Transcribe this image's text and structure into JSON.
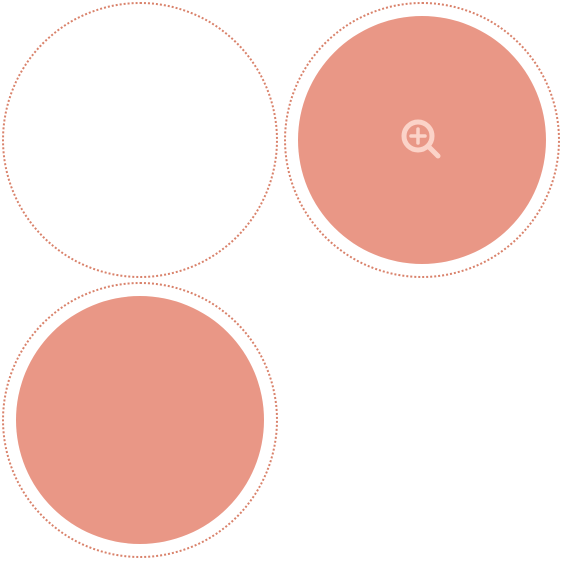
{
  "colors": {
    "ring": "#d9826b",
    "fill": "#e99786",
    "icon": "#fbd3c8",
    "background": "#ffffff"
  },
  "tiles": [
    {
      "state": "empty"
    },
    {
      "state": "filled",
      "hovered": true,
      "icon": "zoom-in-icon"
    },
    {
      "state": "filled"
    }
  ]
}
